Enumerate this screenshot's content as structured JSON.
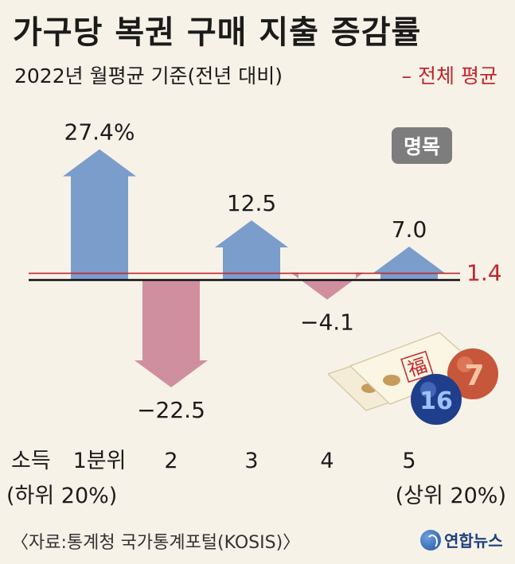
{
  "header": {
    "title": "가구당 복권 구매 지출 증감률",
    "subtitle": "2022년 월평균 기준(전년 대비)",
    "avg_legend": "– 전체 평균",
    "badge": "명목"
  },
  "chart_data": {
    "type": "bar",
    "categories": [
      "1분위",
      "2",
      "3",
      "4",
      "5"
    ],
    "values": [
      27.4,
      -22.5,
      12.5,
      -4.1,
      7.0
    ],
    "value_labels": [
      "27.4%",
      "−22.5",
      "12.5",
      "−4.1",
      "7.0"
    ],
    "average": 1.4,
    "average_label": "1.4",
    "x_prefix": "소득",
    "sub_labels": [
      "(하위 20%)",
      "(상위 20%)"
    ],
    "colors": {
      "positive": "#7b9dcb",
      "negative": "#cf8f9f",
      "average_line": "#c0262c",
      "zero_line": "#111111"
    }
  },
  "footer": {
    "source": "〈자료:통계청 국가통계포털(KOSIS)〉",
    "logo_text": "연합뉴스"
  },
  "decoration": {
    "ball_numbers": [
      "16",
      "7"
    ],
    "ticket_char": "福"
  }
}
